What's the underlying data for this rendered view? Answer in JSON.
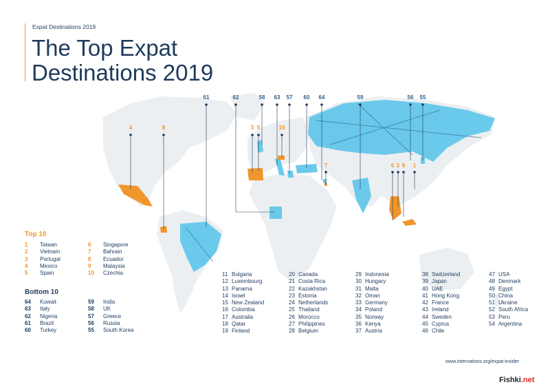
{
  "kicker": "Expat Destinations 2019",
  "title_line1": "The Top Expat",
  "title_line2": "Destinations 2019",
  "colors": {
    "top": "#f0962c",
    "bottom": "#5cc5ea",
    "land": "#eceff1",
    "text": "#1e3a5c"
  },
  "pins": [
    "61",
    "62",
    "58",
    "63",
    "57",
    "60",
    "64",
    "59",
    "56",
    "55",
    "4",
    "8",
    "3",
    "5",
    "10",
    "7",
    "6",
    "2",
    "9",
    "1"
  ],
  "top10_title": "Top 10",
  "top10_left": [
    {
      "n": "1",
      "c": "Taiwan"
    },
    {
      "n": "2",
      "c": "Vietnam"
    },
    {
      "n": "3",
      "c": "Portugal"
    },
    {
      "n": "4",
      "c": "Mexico"
    },
    {
      "n": "5",
      "c": "Spain"
    }
  ],
  "top10_right": [
    {
      "n": "6",
      "c": "Singapore"
    },
    {
      "n": "7",
      "c": "Bahrain"
    },
    {
      "n": "8",
      "c": "Ecuador"
    },
    {
      "n": "9",
      "c": "Malaysia"
    },
    {
      "n": "10",
      "c": "Czechia"
    }
  ],
  "bottom10_title": "Bottom 10",
  "bottom10_left": [
    {
      "n": "64",
      "c": "Kuwait"
    },
    {
      "n": "63",
      "c": "Italy"
    },
    {
      "n": "62",
      "c": "Nigeria"
    },
    {
      "n": "61",
      "c": "Brazil"
    },
    {
      "n": "60",
      "c": "Turkey"
    }
  ],
  "bottom10_right": [
    {
      "n": "59",
      "c": "India"
    },
    {
      "n": "58",
      "c": "UK"
    },
    {
      "n": "57",
      "c": "Greece"
    },
    {
      "n": "56",
      "c": "Russia"
    },
    {
      "n": "55",
      "c": "South Korea"
    }
  ],
  "mid_columns": [
    [
      {
        "n": "11",
        "c": "Bulgaria"
      },
      {
        "n": "12",
        "c": "Luxembourg"
      },
      {
        "n": "13",
        "c": "Panama"
      },
      {
        "n": "14",
        "c": "Israel"
      },
      {
        "n": "15",
        "c": "New Zealand"
      },
      {
        "n": "16",
        "c": "Colombia"
      },
      {
        "n": "17",
        "c": "Australia"
      },
      {
        "n": "18",
        "c": "Qatar"
      },
      {
        "n": "19",
        "c": "Finland"
      }
    ],
    [
      {
        "n": "20",
        "c": "Canada"
      },
      {
        "n": "21",
        "c": "Costa Rica"
      },
      {
        "n": "22",
        "c": "Kazakhstan"
      },
      {
        "n": "23",
        "c": "Estonia"
      },
      {
        "n": "24",
        "c": "Netherlands"
      },
      {
        "n": "25",
        "c": "Thailand"
      },
      {
        "n": "26",
        "c": "Morocco"
      },
      {
        "n": "27",
        "c": "Philippines"
      },
      {
        "n": "28",
        "c": "Belgium"
      }
    ],
    [
      {
        "n": "29",
        "c": "Indonesia"
      },
      {
        "n": "30",
        "c": "Hungary"
      },
      {
        "n": "31",
        "c": "Malta"
      },
      {
        "n": "32",
        "c": "Oman"
      },
      {
        "n": "33",
        "c": "Germany"
      },
      {
        "n": "34",
        "c": "Poland"
      },
      {
        "n": "35",
        "c": "Norway"
      },
      {
        "n": "36",
        "c": "Kenya"
      },
      {
        "n": "37",
        "c": "Austria"
      }
    ],
    [
      {
        "n": "38",
        "c": "Switzerland"
      },
      {
        "n": "39",
        "c": "Japan"
      },
      {
        "n": "40",
        "c": "UAE"
      },
      {
        "n": "41",
        "c": "Hong Kong"
      },
      {
        "n": "42",
        "c": "France"
      },
      {
        "n": "43",
        "c": "Ireland"
      },
      {
        "n": "44",
        "c": "Sweden"
      },
      {
        "n": "45",
        "c": "Cyprus"
      },
      {
        "n": "46",
        "c": "Chile"
      }
    ],
    [
      {
        "n": "47",
        "c": "USA"
      },
      {
        "n": "48",
        "c": "Denmark"
      },
      {
        "n": "49",
        "c": "Egypt"
      },
      {
        "n": "50",
        "c": "China"
      },
      {
        "n": "51",
        "c": "Ukraine"
      },
      {
        "n": "52",
        "c": "South Africa"
      },
      {
        "n": "53",
        "c": "Peru"
      },
      {
        "n": "54",
        "c": "Argentina"
      }
    ]
  ],
  "url": "www.internations.org/expat-insider",
  "watermark_a": "Fishki",
  "watermark_b": ".net"
}
